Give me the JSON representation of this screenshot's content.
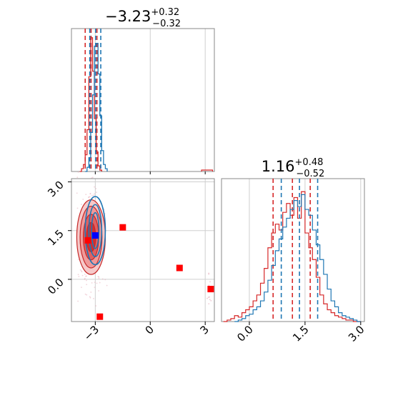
{
  "chart_data": [
    {
      "panel": "top-left",
      "type": "histogram",
      "title": {
        "value": "−3.23",
        "sup": "+0.32",
        "sub": "−0.32"
      },
      "xlim": [
        -4.3,
        3.5
      ],
      "grid": true,
      "series": [
        {
          "color": "#d62728",
          "bins": [
            -3.85,
            -3.75,
            -3.65,
            -3.55,
            -3.45,
            -3.35,
            -3.25,
            -3.15,
            -3.05,
            -2.95,
            -2.85,
            -2.75,
            -2.65
          ],
          "counts": [
            0,
            2,
            5,
            12,
            30,
            68,
            96,
            72,
            38,
            14,
            4,
            1,
            0
          ],
          "quantiles": [
            -3.55,
            -3.23,
            -2.91
          ]
        },
        {
          "color": "#1f77b4",
          "bins": [
            -3.55,
            -3.45,
            -3.35,
            -3.25,
            -3.15,
            -3.05,
            -2.95,
            -2.85,
            -2.75,
            -2.65,
            -2.55,
            -2.45,
            -2.35
          ],
          "counts": [
            0,
            3,
            10,
            28,
            55,
            90,
            92,
            70,
            40,
            15,
            5,
            2,
            0
          ],
          "quantiles": [
            -3.3,
            -2.98,
            -2.7
          ]
        }
      ],
      "outlier_tail": {
        "color": "#d62728",
        "x": [
          2.8,
          3.4
        ]
      }
    },
    {
      "panel": "bottom-left",
      "type": "scatter-contour",
      "xlim": [
        -4.3,
        3.5
      ],
      "ylim": [
        -1.3,
        3.1
      ],
      "xticks": [
        "−3",
        "0",
        "3"
      ],
      "xtick_values": [
        -3,
        0,
        3
      ],
      "yticks": [
        "3.0",
        "1.5",
        "0.0"
      ],
      "ytick_values": [
        3.0,
        1.5,
        0.0
      ],
      "grid": true,
      "red_markers": [
        [
          -3.4,
          1.2
        ],
        [
          -1.5,
          1.6
        ],
        [
          1.6,
          0.35
        ],
        [
          3.3,
          -0.3
        ],
        [
          -2.75,
          -1.15
        ]
      ],
      "blue_marker": [
        -3.0,
        1.35
      ],
      "red_contours": {
        "center": [
          -3.23,
          1.3
        ],
        "rx": [
          0.25,
          0.42,
          0.6,
          0.78
        ],
        "ry": [
          0.45,
          0.7,
          0.95,
          1.15
        ]
      },
      "blue_contours": {
        "center": [
          -3.0,
          1.5
        ],
        "rx": [
          0.2,
          0.35,
          0.55
        ],
        "ry": [
          0.55,
          0.8,
          1.05
        ]
      }
    },
    {
      "panel": "bottom-right",
      "type": "histogram",
      "title": {
        "value": "1.16",
        "sup": "+0.48",
        "sub": "−0.52"
      },
      "xlim": [
        -0.75,
        3.1
      ],
      "xticks": [
        "0.0",
        "1.5",
        "3.0"
      ],
      "xtick_values": [
        0.0,
        1.5,
        3.0
      ],
      "grid": true,
      "series": [
        {
          "color": "#d62728",
          "bins": [
            -0.7,
            -0.6,
            -0.5,
            -0.4,
            -0.3,
            -0.2,
            -0.1,
            0.0,
            0.1,
            0.2,
            0.3,
            0.4,
            0.5,
            0.6,
            0.7,
            0.8,
            0.9,
            1.0,
            1.1,
            1.2,
            1.3,
            1.4,
            1.5,
            1.6,
            1.7,
            1.8,
            1.9,
            2.0,
            2.1,
            2.2,
            2.3,
            2.4,
            2.5,
            2.6,
            2.7,
            2.8,
            2.9,
            3.0
          ],
          "counts": [
            0,
            1,
            2,
            4,
            3,
            6,
            8,
            10,
            14,
            18,
            26,
            36,
            50,
            60,
            66,
            62,
            74,
            80,
            72,
            84,
            70,
            88,
            60,
            50,
            42,
            30,
            18,
            12,
            8,
            6,
            4,
            3,
            2,
            1,
            1,
            0,
            0,
            0
          ],
          "quantiles": [
            0.64,
            1.16,
            1.64
          ]
        },
        {
          "color": "#1f77b4",
          "bins": [
            -0.4,
            -0.3,
            -0.2,
            -0.1,
            0.0,
            0.1,
            0.2,
            0.3,
            0.4,
            0.5,
            0.6,
            0.7,
            0.8,
            0.9,
            1.0,
            1.1,
            1.2,
            1.3,
            1.4,
            1.5,
            1.6,
            1.7,
            1.8,
            1.9,
            2.0,
            2.1,
            2.2,
            2.3,
            2.4,
            2.5,
            2.6,
            2.7,
            2.8,
            2.9,
            3.0
          ],
          "counts": [
            0,
            1,
            2,
            4,
            5,
            8,
            10,
            14,
            20,
            28,
            38,
            48,
            56,
            64,
            70,
            76,
            82,
            78,
            86,
            76,
            72,
            62,
            52,
            42,
            32,
            22,
            14,
            10,
            6,
            4,
            3,
            2,
            1,
            0,
            0
          ],
          "quantiles": [
            0.86,
            1.35,
            1.84
          ]
        }
      ]
    }
  ]
}
